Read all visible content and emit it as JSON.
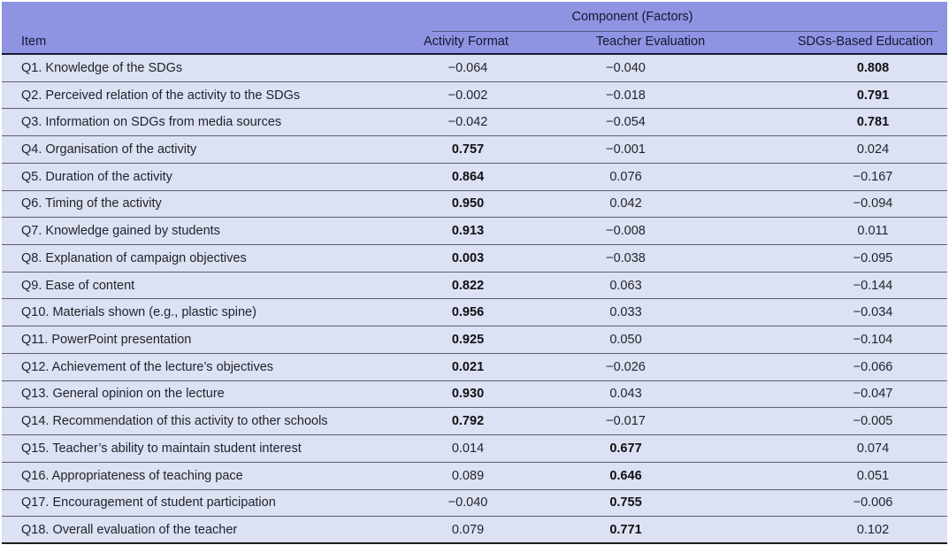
{
  "table": {
    "header": {
      "group_label": "Component (Factors)",
      "item_label": "Item",
      "columns": [
        "Activity Format",
        "Teacher Evaluation",
        "SDGs-Based Education"
      ]
    },
    "rows": [
      {
        "item": "Q1. Knowledge of the SDGs",
        "values": [
          "−0.064",
          "−0.040",
          "0.808"
        ],
        "bold_index": 2
      },
      {
        "item": "Q2. Perceived relation of the activity to the SDGs",
        "values": [
          "−0.002",
          "−0.018",
          "0.791"
        ],
        "bold_index": 2
      },
      {
        "item": "Q3. Information on SDGs from media sources",
        "values": [
          "−0.042",
          "−0.054",
          "0.781"
        ],
        "bold_index": 2
      },
      {
        "item": "Q4. Organisation of the activity",
        "values": [
          "0.757",
          "−0.001",
          "0.024"
        ],
        "bold_index": 0
      },
      {
        "item": "Q5. Duration of the activity",
        "values": [
          "0.864",
          "0.076",
          "−0.167"
        ],
        "bold_index": 0
      },
      {
        "item": "Q6. Timing of the activity",
        "values": [
          "0.950",
          "0.042",
          "−0.094"
        ],
        "bold_index": 0
      },
      {
        "item": "Q7. Knowledge gained by students",
        "values": [
          "0.913",
          "−0.008",
          "0.011"
        ],
        "bold_index": 0
      },
      {
        "item": "Q8. Explanation of campaign objectives",
        "values": [
          "0.003",
          "−0.038",
          "−0.095"
        ],
        "bold_index": 0
      },
      {
        "item": "Q9. Ease of content",
        "values": [
          "0.822",
          "0.063",
          "−0.144"
        ],
        "bold_index": 0
      },
      {
        "item": "Q10. Materials shown (e.g., plastic spine)",
        "values": [
          "0.956",
          "0.033",
          "−0.034"
        ],
        "bold_index": 0
      },
      {
        "item": "Q11. PowerPoint presentation",
        "values": [
          "0.925",
          "0.050",
          "−0.104"
        ],
        "bold_index": 0
      },
      {
        "item": "Q12. Achievement of the lecture’s objectives",
        "values": [
          "0.021",
          "−0.026",
          "−0.066"
        ],
        "bold_index": 0
      },
      {
        "item": "Q13. General opinion on the lecture",
        "values": [
          "0.930",
          "0.043",
          "−0.047"
        ],
        "bold_index": 0
      },
      {
        "item": "Q14. Recommendation of this activity to other schools",
        "values": [
          "0.792",
          "−0.017",
          "−0.005"
        ],
        "bold_index": 0
      },
      {
        "item": "Q15. Teacher’s ability to maintain student interest",
        "values": [
          "0.014",
          "0.677",
          "0.074"
        ],
        "bold_index": 1
      },
      {
        "item": "Q16. Appropriateness of teaching pace",
        "values": [
          "0.089",
          "0.646",
          "0.051"
        ],
        "bold_index": 1
      },
      {
        "item": "Q17. Encouragement of student participation",
        "values": [
          "−0.040",
          "0.755",
          "−0.006"
        ],
        "bold_index": 1
      },
      {
        "item": "Q18. Overall evaluation of the teacher",
        "values": [
          "0.079",
          "0.771",
          "0.102"
        ],
        "bold_index": 1
      }
    ],
    "colors": {
      "header_bg": "#8e93e2",
      "row_bg": "#dce1f3",
      "header_text": "#16182f",
      "body_text": "#1f2328"
    }
  }
}
